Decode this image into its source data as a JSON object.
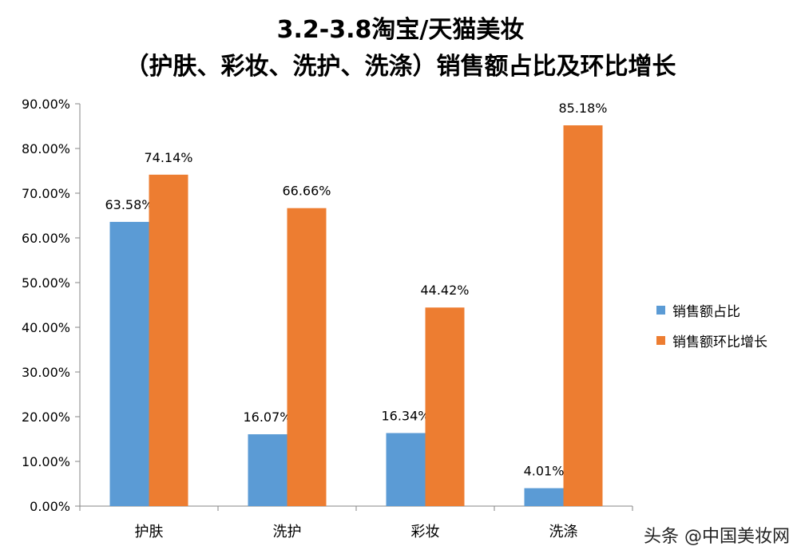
{
  "chart_data": {
    "type": "bar",
    "title": "3.2-3.8淘宝/天猫美妆",
    "subtitle": "（护肤、彩妆、洗护、洗涤）销售额占比及环比增长",
    "categories": [
      "护肤",
      "洗护",
      "彩妆",
      "洗涤"
    ],
    "series": [
      {
        "name": "销售额占比",
        "values": [
          63.58,
          16.07,
          16.34,
          4.01
        ],
        "labels": [
          "63.58%",
          "16.07%",
          "16.34%",
          "4.01%"
        ],
        "color": "#5B9BD5"
      },
      {
        "name": "销售额环比增长",
        "values": [
          74.14,
          66.66,
          44.42,
          85.18
        ],
        "labels": [
          "74.14%",
          "66.66%",
          "44.42%",
          "85.18%"
        ],
        "color": "#ED7D31"
      }
    ],
    "ylim": [
      0,
      90
    ],
    "yticks": [
      "0.00%",
      "10.00%",
      "20.00%",
      "30.00%",
      "40.00%",
      "50.00%",
      "60.00%",
      "70.00%",
      "80.00%",
      "90.00%"
    ],
    "grid": false,
    "legend_position": "right",
    "xlabel": "",
    "ylabel": ""
  },
  "watermark": "头条 @中国美妆网"
}
